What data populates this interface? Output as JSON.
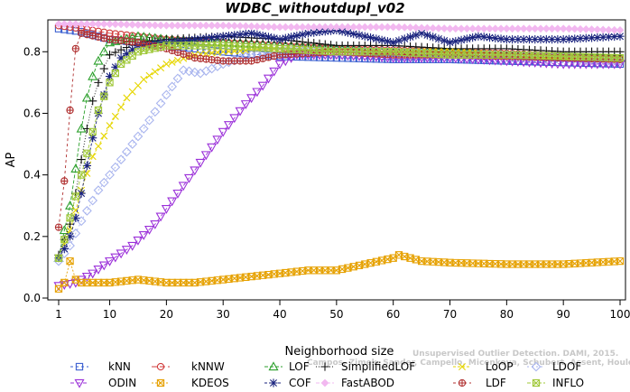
{
  "chart_data": {
    "type": "line",
    "title": "WDBC_withoutdupl_v02",
    "xlabel": "Neighborhood size",
    "ylabel": "AP",
    "xlim": [
      1,
      100
    ],
    "ylim": [
      0,
      0.88
    ],
    "x_ticks": [
      1,
      10,
      20,
      30,
      40,
      50,
      60,
      70,
      80,
      90,
      100
    ],
    "y_ticks": [
      0.0,
      0.2,
      0.4,
      0.6,
      0.8
    ],
    "grid": false,
    "legend_position": "bottom",
    "watermark": [
      "Unsupervised Outlier Detection. DAMI, 2015.",
      "Campos, Zimek, Sander, Campello, Micenkova, Schubert, Assent, Houle"
    ],
    "series": [
      {
        "name": "kNN",
        "color": "#3a5fd0",
        "marker": "square",
        "dash": "3,3",
        "points": [
          [
            1,
            0.875
          ],
          [
            3,
            0.87
          ],
          [
            5,
            0.865
          ],
          [
            10,
            0.84
          ],
          [
            20,
            0.82
          ],
          [
            30,
            0.8
          ],
          [
            40,
            0.785
          ],
          [
            50,
            0.78
          ],
          [
            60,
            0.775
          ],
          [
            70,
            0.775
          ],
          [
            80,
            0.77
          ],
          [
            90,
            0.765
          ],
          [
            100,
            0.76
          ]
        ]
      },
      {
        "name": "kNNW",
        "color": "#d23c3c",
        "marker": "circle",
        "dash": "6,3",
        "points": [
          [
            1,
            0.885
          ],
          [
            3,
            0.88
          ],
          [
            5,
            0.875
          ],
          [
            10,
            0.86
          ],
          [
            20,
            0.84
          ],
          [
            30,
            0.83
          ],
          [
            40,
            0.82
          ],
          [
            50,
            0.81
          ],
          [
            60,
            0.805
          ],
          [
            70,
            0.8
          ],
          [
            80,
            0.795
          ],
          [
            90,
            0.785
          ],
          [
            100,
            0.78
          ]
        ]
      },
      {
        "name": "LOF",
        "color": "#2ca02c",
        "marker": "triangle-up",
        "dash": "4,2",
        "points": [
          [
            1,
            0.13
          ],
          [
            2,
            0.22
          ],
          [
            3,
            0.3
          ],
          [
            4,
            0.42
          ],
          [
            5,
            0.55
          ],
          [
            6,
            0.65
          ],
          [
            7,
            0.72
          ],
          [
            8,
            0.77
          ],
          [
            10,
            0.83
          ],
          [
            15,
            0.85
          ],
          [
            20,
            0.84
          ],
          [
            30,
            0.83
          ],
          [
            40,
            0.82
          ],
          [
            50,
            0.81
          ],
          [
            60,
            0.8
          ],
          [
            70,
            0.8
          ],
          [
            80,
            0.79
          ],
          [
            90,
            0.785
          ],
          [
            100,
            0.78
          ]
        ]
      },
      {
        "name": "SimplifiedLOF",
        "color": "#111111",
        "marker": "plus",
        "dash": "1,2",
        "points": [
          [
            1,
            0.14
          ],
          [
            3,
            0.24
          ],
          [
            4,
            0.34
          ],
          [
            5,
            0.45
          ],
          [
            6,
            0.55
          ],
          [
            7,
            0.64
          ],
          [
            8,
            0.7
          ],
          [
            10,
            0.79
          ],
          [
            15,
            0.83
          ],
          [
            20,
            0.84
          ],
          [
            30,
            0.85
          ],
          [
            40,
            0.84
          ],
          [
            50,
            0.82
          ],
          [
            60,
            0.82
          ],
          [
            70,
            0.81
          ],
          [
            80,
            0.81
          ],
          [
            90,
            0.8
          ],
          [
            100,
            0.8
          ]
        ]
      },
      {
        "name": "LoOP",
        "color": "#e6d600",
        "marker": "x",
        "dash": "3,2",
        "points": [
          [
            1,
            0.13
          ],
          [
            3,
            0.22
          ],
          [
            5,
            0.35
          ],
          [
            7,
            0.46
          ],
          [
            10,
            0.56
          ],
          [
            13,
            0.65
          ],
          [
            16,
            0.71
          ],
          [
            20,
            0.76
          ],
          [
            25,
            0.79
          ],
          [
            30,
            0.8
          ],
          [
            40,
            0.81
          ],
          [
            50,
            0.8
          ],
          [
            60,
            0.8
          ],
          [
            70,
            0.8
          ],
          [
            80,
            0.79
          ],
          [
            90,
            0.78
          ],
          [
            100,
            0.78
          ]
        ]
      },
      {
        "name": "LDOF",
        "color": "#a8b4ee",
        "marker": "diamond",
        "dash": "2,3",
        "points": [
          [
            1,
            0.12
          ],
          [
            3,
            0.17
          ],
          [
            5,
            0.25
          ],
          [
            8,
            0.35
          ],
          [
            12,
            0.45
          ],
          [
            16,
            0.55
          ],
          [
            20,
            0.66
          ],
          [
            23,
            0.74
          ],
          [
            26,
            0.73
          ],
          [
            30,
            0.76
          ],
          [
            35,
            0.79
          ],
          [
            40,
            0.8
          ],
          [
            50,
            0.8
          ],
          [
            60,
            0.8
          ],
          [
            70,
            0.79
          ],
          [
            80,
            0.79
          ],
          [
            90,
            0.78
          ],
          [
            100,
            0.77
          ]
        ]
      },
      {
        "name": "ODIN",
        "color": "#9b30d9",
        "marker": "triangle-down",
        "dash": "4,3",
        "points": [
          [
            1,
            0.04
          ],
          [
            4,
            0.05
          ],
          [
            7,
            0.08
          ],
          [
            10,
            0.12
          ],
          [
            14,
            0.17
          ],
          [
            18,
            0.24
          ],
          [
            22,
            0.34
          ],
          [
            26,
            0.44
          ],
          [
            30,
            0.54
          ],
          [
            34,
            0.63
          ],
          [
            37,
            0.69
          ],
          [
            40,
            0.76
          ],
          [
            43,
            0.79
          ],
          [
            50,
            0.79
          ],
          [
            60,
            0.78
          ],
          [
            70,
            0.78
          ],
          [
            80,
            0.77
          ],
          [
            90,
            0.76
          ],
          [
            100,
            0.76
          ]
        ]
      },
      {
        "name": "KDEOS",
        "color": "#e6a100",
        "marker": "square-x",
        "dash": "2,2",
        "points": [
          [
            1,
            0.03
          ],
          [
            2,
            0.05
          ],
          [
            3,
            0.12
          ],
          [
            4,
            0.06
          ],
          [
            5,
            0.05
          ],
          [
            10,
            0.05
          ],
          [
            15,
            0.06
          ],
          [
            20,
            0.05
          ],
          [
            25,
            0.05
          ],
          [
            30,
            0.06
          ],
          [
            35,
            0.07
          ],
          [
            40,
            0.08
          ],
          [
            45,
            0.09
          ],
          [
            50,
            0.09
          ],
          [
            55,
            0.11
          ],
          [
            60,
            0.13
          ],
          [
            61,
            0.14
          ],
          [
            65,
            0.12
          ],
          [
            70,
            0.115
          ],
          [
            80,
            0.11
          ],
          [
            90,
            0.11
          ],
          [
            100,
            0.12
          ]
        ]
      },
      {
        "name": "COF",
        "color": "#1a237e",
        "marker": "asterisk",
        "dash": "3,2",
        "points": [
          [
            1,
            0.13
          ],
          [
            2,
            0.16
          ],
          [
            3,
            0.2
          ],
          [
            4,
            0.26
          ],
          [
            5,
            0.34
          ],
          [
            6,
            0.43
          ],
          [
            7,
            0.52
          ],
          [
            8,
            0.6
          ],
          [
            10,
            0.72
          ],
          [
            12,
            0.78
          ],
          [
            15,
            0.82
          ],
          [
            20,
            0.83
          ],
          [
            25,
            0.84
          ],
          [
            30,
            0.85
          ],
          [
            35,
            0.86
          ],
          [
            40,
            0.84
          ],
          [
            45,
            0.86
          ],
          [
            50,
            0.87
          ],
          [
            55,
            0.85
          ],
          [
            60,
            0.83
          ],
          [
            65,
            0.86
          ],
          [
            70,
            0.83
          ],
          [
            75,
            0.85
          ],
          [
            80,
            0.84
          ],
          [
            90,
            0.84
          ],
          [
            100,
            0.85
          ]
        ]
      },
      {
        "name": "FastABOD",
        "color": "#f2b8f0",
        "marker": "diamond-filled",
        "dash": "4,2",
        "points": [
          [
            1,
            0.89
          ],
          [
            5,
            0.89
          ],
          [
            10,
            0.89
          ],
          [
            20,
            0.885
          ],
          [
            30,
            0.885
          ],
          [
            40,
            0.88
          ],
          [
            50,
            0.88
          ],
          [
            60,
            0.88
          ],
          [
            70,
            0.875
          ],
          [
            80,
            0.875
          ],
          [
            90,
            0.875
          ],
          [
            100,
            0.87
          ]
        ]
      },
      {
        "name": "LDF",
        "color": "#b03030",
        "marker": "circle-plus",
        "dash": "3,3",
        "points": [
          [
            1,
            0.23
          ],
          [
            2,
            0.38
          ],
          [
            3,
            0.61
          ],
          [
            4,
            0.81
          ],
          [
            5,
            0.86
          ],
          [
            10,
            0.84
          ],
          [
            15,
            0.83
          ],
          [
            20,
            0.81
          ],
          [
            25,
            0.78
          ],
          [
            30,
            0.77
          ],
          [
            35,
            0.77
          ],
          [
            40,
            0.79
          ],
          [
            50,
            0.8
          ],
          [
            60,
            0.79
          ],
          [
            70,
            0.79
          ],
          [
            80,
            0.785
          ],
          [
            90,
            0.78
          ],
          [
            100,
            0.775
          ]
        ]
      },
      {
        "name": "INFLO",
        "color": "#a0c83a",
        "marker": "square-x",
        "dash": "4,2",
        "points": [
          [
            1,
            0.13
          ],
          [
            2,
            0.19
          ],
          [
            3,
            0.26
          ],
          [
            4,
            0.33
          ],
          [
            5,
            0.4
          ],
          [
            6,
            0.47
          ],
          [
            7,
            0.54
          ],
          [
            8,
            0.61
          ],
          [
            10,
            0.7
          ],
          [
            12,
            0.76
          ],
          [
            15,
            0.8
          ],
          [
            20,
            0.82
          ],
          [
            30,
            0.82
          ],
          [
            40,
            0.81
          ],
          [
            50,
            0.8
          ],
          [
            60,
            0.8
          ],
          [
            70,
            0.79
          ],
          [
            80,
            0.79
          ],
          [
            90,
            0.785
          ],
          [
            100,
            0.78
          ]
        ]
      }
    ]
  }
}
